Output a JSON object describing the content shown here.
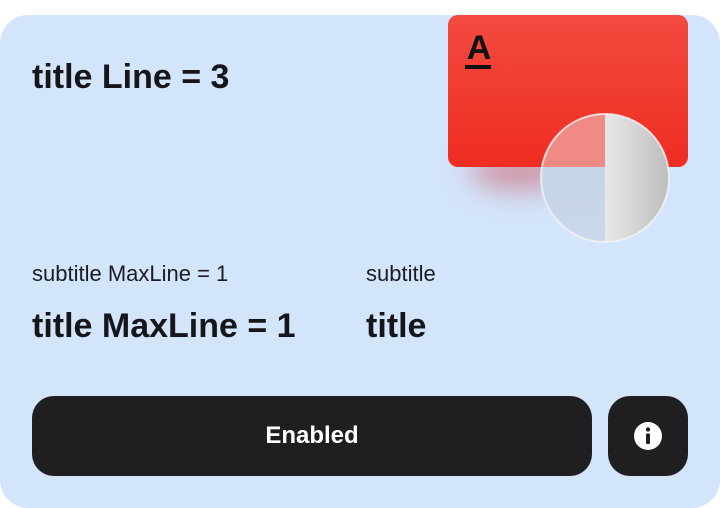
{
  "main_title": "title Line = 3",
  "columns": [
    {
      "subtitle": "subtitle MaxLine = 1",
      "title": "title MaxLine = 1"
    },
    {
      "subtitle": "subtitle",
      "title": "title"
    }
  ],
  "primary_button": {
    "label": "Enabled"
  },
  "info_button": {
    "icon": "info-icon"
  },
  "bank_card": {
    "logo": "А",
    "color": "#ef2d22"
  },
  "colors": {
    "card_background": "#d3e5fb",
    "button_background": "#1f1f22",
    "text": "#16161a"
  }
}
